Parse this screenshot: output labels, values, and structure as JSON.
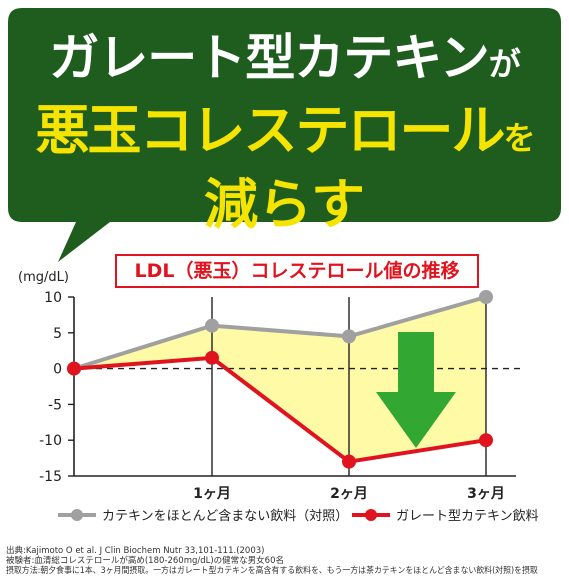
{
  "headline": {
    "line1_main": "ガレート型カテキン",
    "line1_suffix": "が",
    "line2_main": "悪玉コレステロール",
    "line2_suffix": "を",
    "line3_main": "減らす"
  },
  "colors": {
    "banner_green": "#1f5d1f",
    "highlight_yellow": "#f5e400",
    "red": "#e0141e",
    "gray": "#a0a0a0",
    "fill_yellow": "#fffaa6",
    "arrow_green": "#32a832"
  },
  "chart_data": {
    "type": "line",
    "title": "LDL（悪玉）コレステロール値の推移",
    "ylabel": "(mg/dL)",
    "categories": [
      "",
      "1ヶ月",
      "2ヶ月",
      "3ヶ月"
    ],
    "x_ticks": [
      "1ヶ月",
      "2ヶ月",
      "3ヶ月"
    ],
    "y_ticks": [
      "10",
      "5",
      "0",
      "-5",
      "-10",
      "-15"
    ],
    "ylim": [
      -15,
      10
    ],
    "grid": "dashed zero line",
    "series": [
      {
        "name": "カテキンをほとんど含まない飲料（対照）",
        "color": "#a0a0a0",
        "values": [
          0,
          6,
          4.5,
          10
        ]
      },
      {
        "name": "ガレート型カテキン飲料",
        "color": "#e0141e",
        "values": [
          0,
          1.5,
          -13,
          -10
        ]
      }
    ],
    "legend_position": "bottom"
  },
  "footnotes": [
    "出典:Kajimoto O et al. J Clin Biochem Nutr 33,101-111.(2003)",
    "被験者:血清総コレステロールが高め(180-260mg/dL)の健常な男女60名",
    "摂取方法:朝夕食事に1本、3ヶ月間摂取。一方はガレート型カテキンを高含有する飲料を、もう一方は茶カテキンをほとんど含まない飲料(対照)を摂取"
  ]
}
